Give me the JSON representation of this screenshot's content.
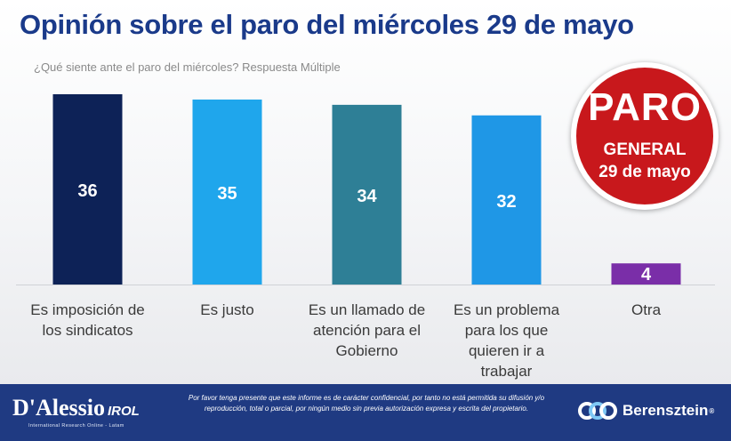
{
  "title": "Opinión sobre el paro del miércoles 29 de mayo",
  "subtitle": "¿Qué siente ante el paro del miércoles? Respuesta Múltiple",
  "badge": {
    "line1": "PARO",
    "line2": "GENERAL",
    "line3": "29 de mayo"
  },
  "chart_data": {
    "type": "bar",
    "title": "Opinión sobre el paro del miércoles 29 de mayo",
    "subtitle": "¿Qué siente ante el paro del miércoles? Respuesta Múltiple",
    "categories": [
      [
        "Es imposición de",
        "los sindicatos"
      ],
      [
        "Es justo"
      ],
      [
        "Es un llamado de",
        "atención para el",
        "Gobierno"
      ],
      [
        "Es un problema",
        "para los que",
        "quieren ir a",
        "trabajar"
      ],
      [
        "Otra"
      ]
    ],
    "values": [
      36,
      35,
      34,
      32,
      4
    ],
    "colors": [
      "#0d2257",
      "#1fa6ec",
      "#2e7f96",
      "#1f97e6",
      "#7a2ea8"
    ],
    "ylim": [
      0,
      36
    ],
    "data_labels": true,
    "grid": false,
    "legend": "none"
  },
  "footer": {
    "logo_left": "D'Alessio",
    "logo_left_suffix": "IROL",
    "logo_left_sub": "International Research Online - Latam",
    "disclaimer": "Por favor tenga presente que este informe es de carácter confidencial, por tanto no está permitida su difusión y/o reproducción, total o parcial, por ningún medio sin previa autorización expresa y escrita del propietario.",
    "logo_right": "Berensztein",
    "logo_right_mark": "®"
  },
  "colors": {
    "title": "#1a3a8a",
    "footer_bg": "#1f3a82",
    "badge_bg": "#c8181c"
  }
}
